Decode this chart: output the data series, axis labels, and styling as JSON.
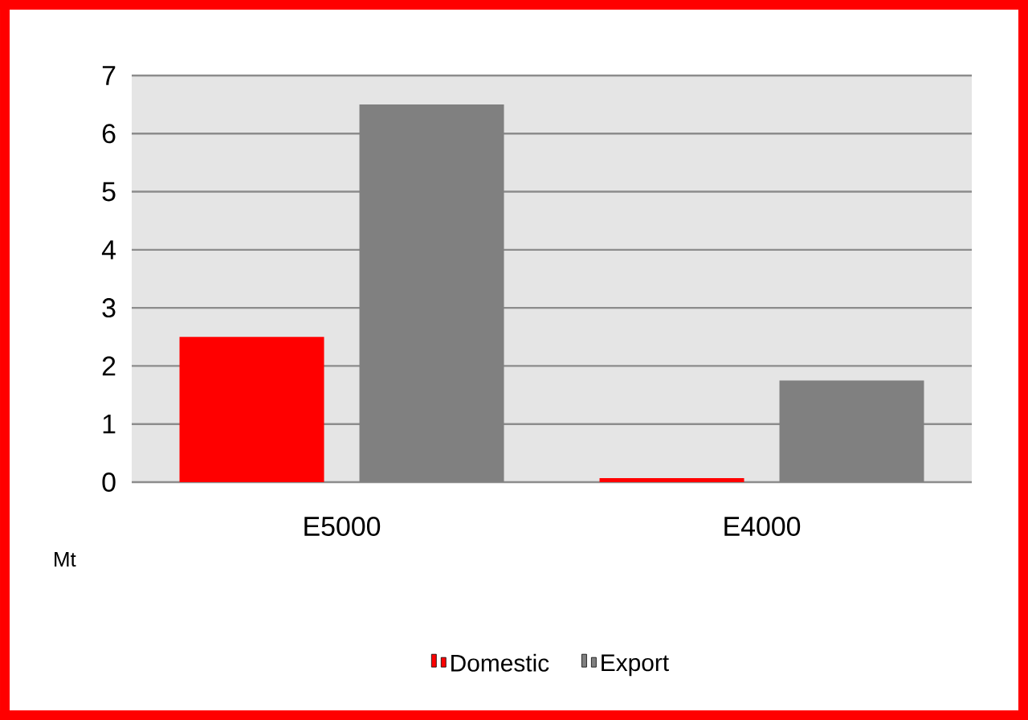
{
  "chart_data": {
    "type": "bar",
    "ylabel": "Mt",
    "categories": [
      "E5000",
      "E4000"
    ],
    "series": [
      {
        "name": "Domestic",
        "color": "#ff0000",
        "values": [
          2.5,
          0.07
        ]
      },
      {
        "name": "Export",
        "color": "#808080",
        "values": [
          6.5,
          1.75
        ]
      }
    ],
    "ylim": [
      0,
      7
    ],
    "yticks": [
      0,
      1,
      2,
      3,
      4,
      5,
      6,
      7
    ],
    "grid": "y",
    "legend": "bottom"
  }
}
